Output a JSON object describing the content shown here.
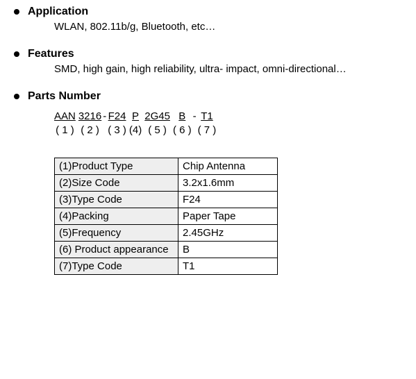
{
  "sections": {
    "application": {
      "title": "Application",
      "text": "WLAN, 802.11b/g, Bluetooth, etc…"
    },
    "features": {
      "title": "Features",
      "text": "SMD, high gain, high reliability, ultra- impact, omni-directional…"
    },
    "partsnumber": {
      "title": "Parts Number"
    }
  },
  "part_number": {
    "segments": [
      {
        "code": "AAN",
        "idx": "( 1 )"
      },
      {
        "code": "3216",
        "idx": "( 2 )"
      },
      {
        "code": "F24",
        "idx": "( 3 )"
      },
      {
        "code": "P",
        "idx": "(4)"
      },
      {
        "code": "2G45",
        "idx": "( 5 )"
      },
      {
        "code": "B",
        "idx": "( 6 )"
      },
      {
        "code": "T1",
        "idx": "( 7 )"
      }
    ],
    "separators": [
      "",
      "-",
      "",
      "",
      "",
      "-"
    ]
  },
  "table": {
    "rows": [
      {
        "label": "(1)Product Type",
        "value": "Chip Antenna"
      },
      {
        "label": "(2)Size Code",
        "value": "3.2x1.6mm"
      },
      {
        "label": "(3)Type Code",
        "value": "F24"
      },
      {
        "label": "(4)Packing",
        "value": "Paper Tape"
      },
      {
        "label": "(5)Frequency",
        "value": "2.45GHz"
      },
      {
        "label": "(6) Product appearance",
        "value": "B"
      },
      {
        "label": "(7)Type Code",
        "value": "T1"
      }
    ],
    "label_bg": "#eeeeee",
    "value_bg": "#ffffff",
    "border_color": "#000000"
  }
}
